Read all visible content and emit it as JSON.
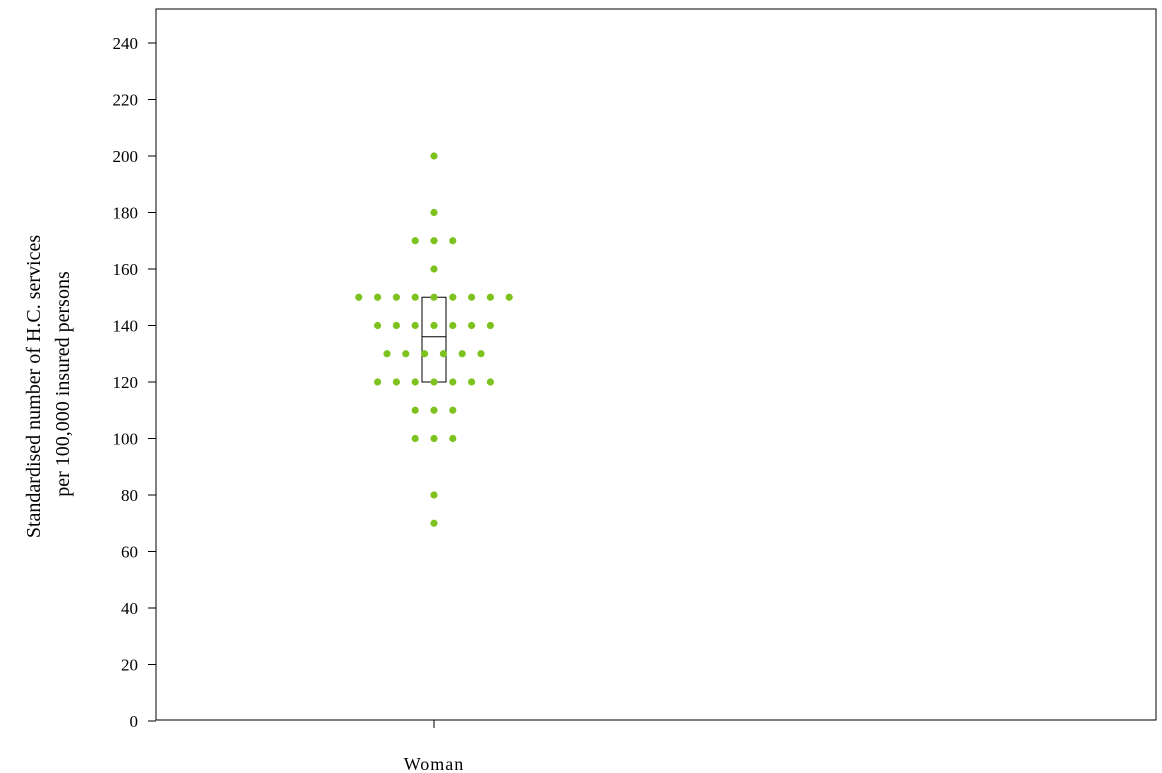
{
  "chart_data": {
    "type": "scatter",
    "subtype": "dot-plot with box",
    "ylabel": [
      "Standardised number of H.C. services",
      "per 100,000 insured persons"
    ],
    "ylim": [
      0,
      240
    ],
    "yticks": [
      0,
      20,
      40,
      60,
      80,
      100,
      120,
      140,
      160,
      180,
      200,
      220,
      240
    ],
    "categories": [
      "Woman"
    ],
    "point_color": "#7dc21e",
    "box": {
      "category": "Woman",
      "q1": 120,
      "median": 136,
      "q3": 150
    },
    "points": [
      {
        "x": "Woman",
        "y": 200,
        "count": 1
      },
      {
        "x": "Woman",
        "y": 180,
        "count": 1
      },
      {
        "x": "Woman",
        "y": 170,
        "count": 3
      },
      {
        "x": "Woman",
        "y": 160,
        "count": 1
      },
      {
        "x": "Woman",
        "y": 150,
        "count": 9
      },
      {
        "x": "Woman",
        "y": 140,
        "count": 7
      },
      {
        "x": "Woman",
        "y": 130,
        "count": 6
      },
      {
        "x": "Woman",
        "y": 120,
        "count": 7
      },
      {
        "x": "Woman",
        "y": 110,
        "count": 3
      },
      {
        "x": "Woman",
        "y": 100,
        "count": 3
      },
      {
        "x": "Woman",
        "y": 80,
        "count": 1
      },
      {
        "x": "Woman",
        "y": 70,
        "count": 1
      }
    ]
  }
}
